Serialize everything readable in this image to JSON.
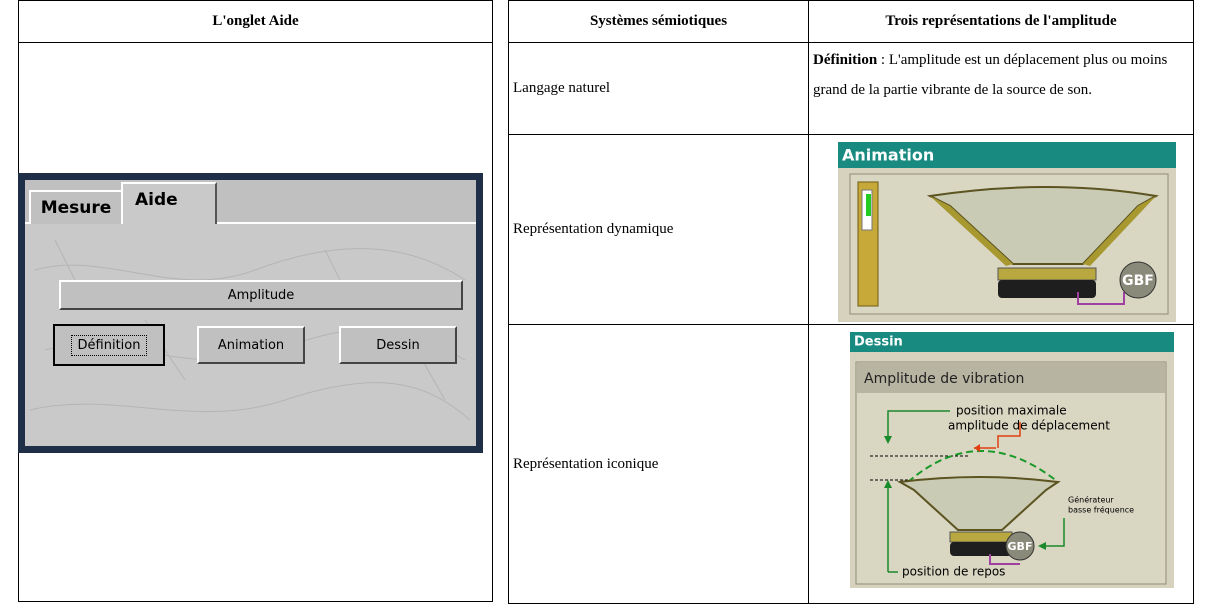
{
  "left_table": {
    "header": "L'onglet Aide",
    "panel": {
      "tabs": [
        "Mesure",
        "Aide"
      ],
      "title_button": "Amplitude",
      "buttons": [
        "Définition",
        "Animation",
        "Dessin"
      ]
    }
  },
  "right_table": {
    "headers": [
      "Systèmes sémiotiques",
      "Trois représentations de l'amplitude"
    ],
    "rows": [
      {
        "system": "Langage naturel",
        "definition_term": "Définition",
        "definition_text": ": L'amplitude est un déplacement plus ou moins grand de la partie vibrante de la source de son."
      },
      {
        "system": "Représentation dynamique",
        "image": {
          "title": "Animation",
          "badge": "GBF"
        }
      },
      {
        "system": "Représentation iconique",
        "image": {
          "title": "Dessin",
          "subtitle": "Amplitude de vibration",
          "labels": [
            "position maximale",
            "amplitude de déplacement",
            "Générateur",
            "basse fréquence",
            "position de repos"
          ],
          "badge": "GBF"
        }
      }
    ]
  }
}
